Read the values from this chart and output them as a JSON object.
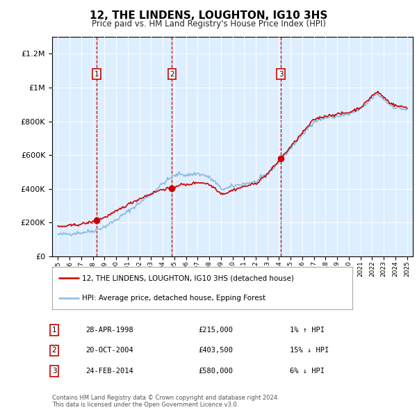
{
  "title": "12, THE LINDENS, LOUGHTON, IG10 3HS",
  "subtitle": "Price paid vs. HM Land Registry's House Price Index (HPI)",
  "legend_entries": [
    "12, THE LINDENS, LOUGHTON, IG10 3HS (detached house)",
    "HPI: Average price, detached house, Epping Forest"
  ],
  "purchases": [
    {
      "num": 1,
      "date": "28-APR-1998",
      "year": 1998.32,
      "price": 215000,
      "hpi_pct": "1% ↑ HPI"
    },
    {
      "num": 2,
      "date": "20-OCT-2004",
      "year": 2004.8,
      "price": 403500,
      "hpi_pct": "15% ↓ HPI"
    },
    {
      "num": 3,
      "date": "24-FEB-2014",
      "year": 2014.15,
      "price": 580000,
      "hpi_pct": "6% ↓ HPI"
    }
  ],
  "price_line_color": "#cc0000",
  "hpi_line_color": "#88bbdd",
  "vline_color": "#cc0000",
  "plot_bg_color": "#ddeeff",
  "footer": "Contains HM Land Registry data © Crown copyright and database right 2024.\nThis data is licensed under the Open Government Licence v3.0.",
  "ylim": [
    0,
    1300000
  ],
  "yticks": [
    0,
    200000,
    400000,
    600000,
    800000,
    1000000,
    1200000
  ]
}
